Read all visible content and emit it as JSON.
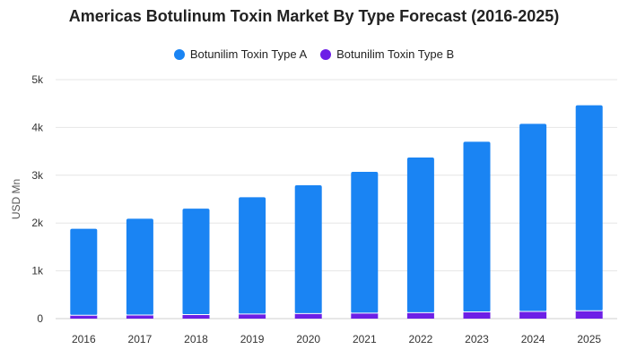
{
  "chart_data": {
    "type": "bar",
    "stacked": true,
    "title": "Americas Botulinum Toxin Market By Type Forecast (2016-2025)",
    "xlabel": "",
    "ylabel": "USD Mn",
    "ylim": [
      0,
      5000
    ],
    "yticks": [
      0,
      1000,
      2000,
      3000,
      4000,
      5000
    ],
    "ytick_labels": [
      "0",
      "1k",
      "2k",
      "3k",
      "4k",
      "5k"
    ],
    "grid": true,
    "legend_position": "top-center",
    "categories": [
      "2016",
      "2017",
      "2018",
      "2019",
      "2020",
      "2021",
      "2022",
      "2023",
      "2024",
      "2025"
    ],
    "series": [
      {
        "name": "Botunilim Toxin Type B",
        "color": "#6d1fe6",
        "values": [
          70,
          75,
          85,
          95,
          105,
          115,
          125,
          140,
          150,
          165
        ]
      },
      {
        "name": "Botunilim Toxin Type A",
        "color": "#1a84f3",
        "values": [
          1810,
          2015,
          2215,
          2445,
          2685,
          2955,
          3245,
          3560,
          3925,
          4300
        ]
      }
    ]
  }
}
